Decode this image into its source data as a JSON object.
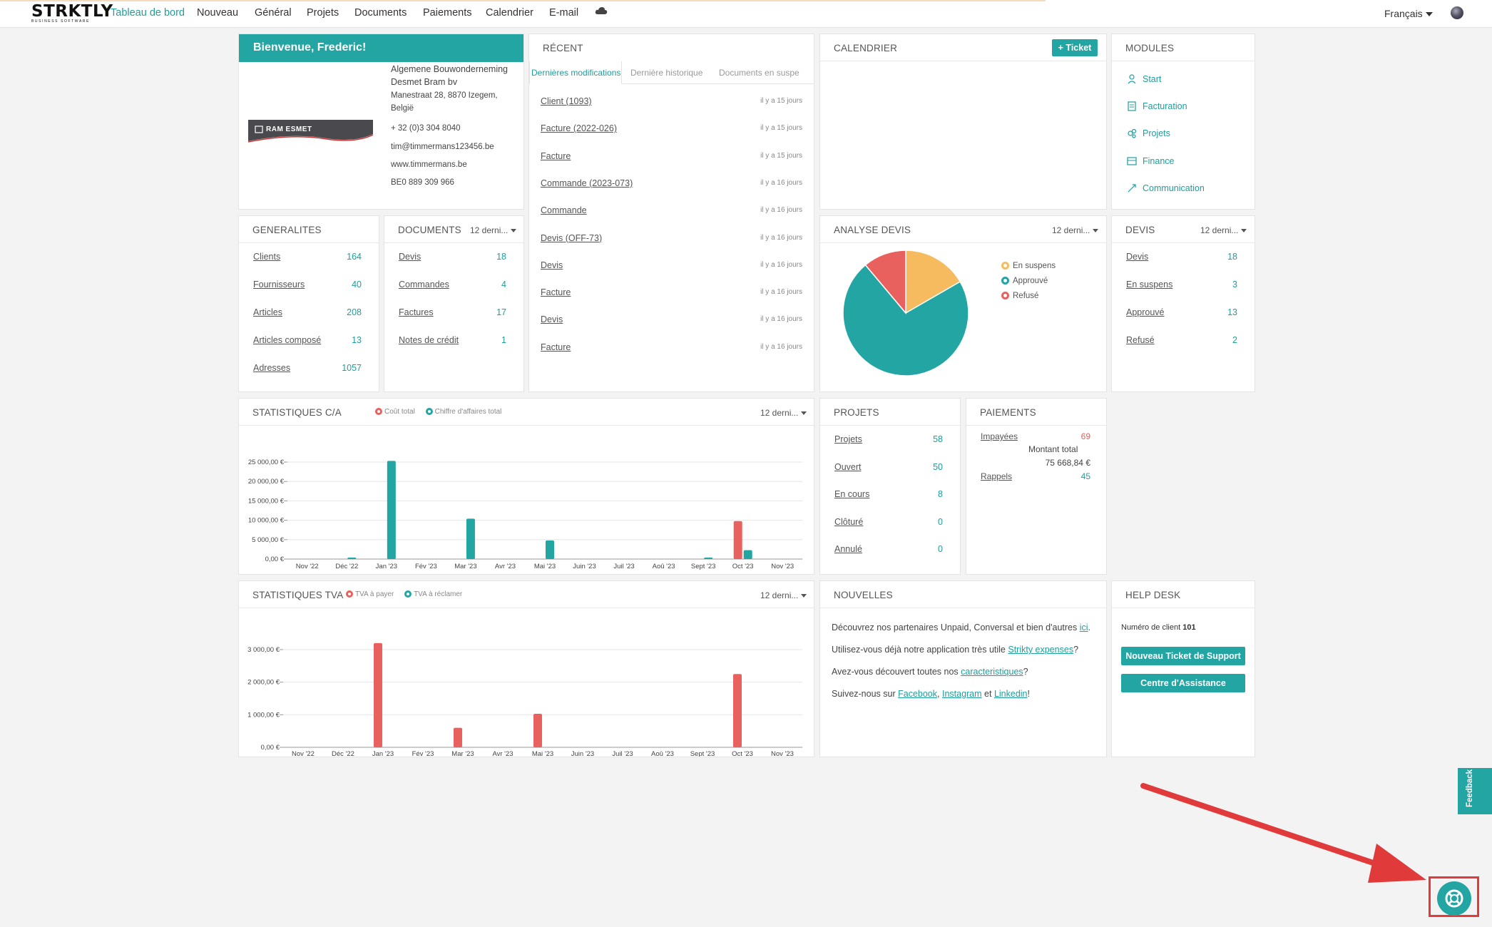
{
  "nav": {
    "logo_main": "STRKTLY",
    "logo_sub": "BUSINESS SOFTWARE",
    "items": [
      "Tableau de bord",
      "Nouveau",
      "Général",
      "Projets",
      "Documents",
      "Paiements",
      "Calendrier",
      "E-mail"
    ],
    "cloud_icon": "cloud-icon",
    "language": "Français"
  },
  "welcome": {
    "title": "Bienvenue, Frederic!",
    "company_name_1": "Algemene Bouwonderneming",
    "company_name_2": "Desmet Bram bv",
    "address_1": "Manestraat 28, 8870 Izegem,",
    "address_2": "België",
    "phone": "+ 32 (0)3 304 8040",
    "email": "tim@timmermans123456.be",
    "website": "www.timmermans.be",
    "vat": "BE0 889 309 966",
    "logo_text": "RAM ESMET"
  },
  "recent": {
    "title": "RÉCENT",
    "tabs": [
      "Dernières modifications",
      "Dernière historique",
      "Documents en suspe"
    ],
    "items": [
      {
        "label": "Client (1093)",
        "time": "il y a 15 jours"
      },
      {
        "label": "Facture (2022-026)",
        "time": "il y a 15 jours"
      },
      {
        "label": "Facture",
        "time": "il y a 15 jours"
      },
      {
        "label": "Commande (2023-073)",
        "time": "il y a 16 jours"
      },
      {
        "label": "Commande",
        "time": "il y a 16 jours"
      },
      {
        "label": "Devis (OFF-73)",
        "time": "il y a 16 jours"
      },
      {
        "label": "Devis",
        "time": "il y a 16 jours"
      },
      {
        "label": "Facture",
        "time": "il y a 16 jours"
      },
      {
        "label": "Devis",
        "time": "il y a 16 jours"
      },
      {
        "label": "Facture",
        "time": "il y a 16 jours"
      }
    ]
  },
  "calendar": {
    "title": "CALENDRIER",
    "ticket_button": "+ Ticket"
  },
  "modules": {
    "title": "MODULES",
    "items": [
      "Start",
      "Facturation",
      "Projets",
      "Finance",
      "Communication"
    ]
  },
  "generalites": {
    "title": "GENERALITES",
    "rows": [
      {
        "label": "Clients",
        "value": "164"
      },
      {
        "label": "Fournisseurs",
        "value": "40"
      },
      {
        "label": "Articles",
        "value": "208"
      },
      {
        "label": "Articles composé",
        "value": "13"
      },
      {
        "label": "Adresses",
        "value": "1057"
      }
    ]
  },
  "documents": {
    "title": "DOCUMENTS",
    "period": "12 derni...",
    "rows": [
      {
        "label": "Devis",
        "value": "18"
      },
      {
        "label": "Commandes",
        "value": "4"
      },
      {
        "label": "Factures",
        "value": "17"
      },
      {
        "label": "Notes de crédit",
        "value": "1"
      }
    ]
  },
  "analyse": {
    "title": "ANALYSE DEVIS",
    "period": "12 derni...",
    "legend": [
      "En suspens",
      "Approuvé",
      "Refusé"
    ],
    "colors": [
      "#f7bb5f",
      "#22a5a3",
      "#e8615f"
    ]
  },
  "devis": {
    "title": "DEVIS",
    "period": "12 derni...",
    "rows": [
      {
        "label": "Devis",
        "value": "18"
      },
      {
        "label": "En suspens",
        "value": "3"
      },
      {
        "label": "Approuvé",
        "value": "13"
      },
      {
        "label": "Refusé",
        "value": "2"
      }
    ]
  },
  "stats_ca": {
    "title": "STATISTIQUES C/A",
    "period": "12 derni...",
    "legend": [
      "Coût total",
      "Chiffre d'affaires total"
    ]
  },
  "projets": {
    "title": "PROJETS",
    "rows": [
      {
        "label": "Projets",
        "value": "58"
      },
      {
        "label": "Ouvert",
        "value": "50"
      },
      {
        "label": "En cours",
        "value": "8"
      },
      {
        "label": "Clôturé",
        "value": "0"
      },
      {
        "label": "Annulé",
        "value": "0"
      }
    ]
  },
  "paiements": {
    "title": "PAIEMENTS",
    "impayees_label": "Impayées",
    "impayees_value": "69",
    "montant_label": "Montant total",
    "montant_value": "75 668,84 €",
    "rappels_label": "Rappels",
    "rappels_value": "45"
  },
  "stats_tva": {
    "title": "STATISTIQUES TVA",
    "period": "12 derni...",
    "legend": [
      "TVA à payer",
      "TVA à réclamer"
    ]
  },
  "nouvelles": {
    "title": "NOUVELLES",
    "l1_pre": "Découvrez nos partenaires Unpaid, Conversal et bien d'autres ",
    "l1_link": "ici",
    "l1_post": ".",
    "l2_pre": "Utilisez-vous déjà notre application très utile ",
    "l2_link": "Strikty expenses",
    "l2_post": "?",
    "l3_pre": "Avez-vous découvert toutes nos ",
    "l3_link": "caracteristiques",
    "l3_post": "?",
    "l4_pre": "Suivez-nous sur ",
    "l4_link1": "Facebook",
    "l4_sep1": ", ",
    "l4_link2": "Instagram",
    "l4_sep2": " et ",
    "l4_link3": "Linkedin",
    "l4_post": "!"
  },
  "helpdesk": {
    "title": "HELP DESK",
    "client_label": "Numéro de client",
    "client_number": "101",
    "btn_ticket": "Nouveau Ticket de Support",
    "btn_center": "Centre d'Assistance"
  },
  "feedback": "Feedback",
  "chart_data": [
    {
      "type": "pie",
      "title": "ANALYSE DEVIS",
      "categories": [
        "En suspens",
        "Approuvé",
        "Refusé"
      ],
      "values": [
        3,
        13,
        2
      ],
      "colors": [
        "#f7bb5f",
        "#22a5a3",
        "#e8615f"
      ]
    },
    {
      "type": "bar",
      "title": "STATISTIQUES C/A",
      "categories": [
        "Nov '22",
        "Déc '22",
        "Jan '23",
        "Fév '23",
        "Mar '23",
        "Avr '23",
        "Mai '23",
        "Juin '23",
        "Juil '23",
        "Aoû '23",
        "Sept '23",
        "Oct '23",
        "Nov '23"
      ],
      "series": [
        {
          "name": "Coût total",
          "color": "#e8615f",
          "values": [
            0,
            0,
            0,
            0,
            0,
            0,
            0,
            0,
            0,
            0,
            0,
            9800,
            0
          ]
        },
        {
          "name": "Chiffre d'affaires total",
          "color": "#22a5a3",
          "values": [
            0,
            400,
            25300,
            0,
            10400,
            0,
            4800,
            0,
            0,
            0,
            400,
            2300,
            0
          ]
        }
      ],
      "yticks": [
        "0,00 €",
        "5 000,00 €",
        "10 000,00 €",
        "15 000,00 €",
        "20 000,00 €",
        "25 000,00 €"
      ],
      "ylim": [
        0,
        25000
      ]
    },
    {
      "type": "bar",
      "title": "STATISTIQUES TVA",
      "categories": [
        "Nov '22",
        "Déc '22",
        "Jan '23",
        "Fév '23",
        "Mar '23",
        "Avr '23",
        "Mai '23",
        "Juin '23",
        "Juil '23",
        "Aoû '23",
        "Sept '23",
        "Oct '23",
        "Nov '23"
      ],
      "series": [
        {
          "name": "TVA à payer",
          "color": "#e8615f",
          "values": [
            0,
            0,
            3200,
            0,
            600,
            0,
            1030,
            0,
            0,
            0,
            0,
            2250,
            0
          ]
        },
        {
          "name": "TVA à réclamer",
          "color": "#22a5a3",
          "values": [
            0,
            0,
            0,
            0,
            0,
            0,
            0,
            0,
            0,
            0,
            0,
            0,
            0
          ]
        }
      ],
      "yticks": [
        "0,00 €",
        "1 000,00 €",
        "2 000,00 €",
        "3 000,00 €"
      ],
      "ylim": [
        0,
        3000
      ]
    }
  ]
}
